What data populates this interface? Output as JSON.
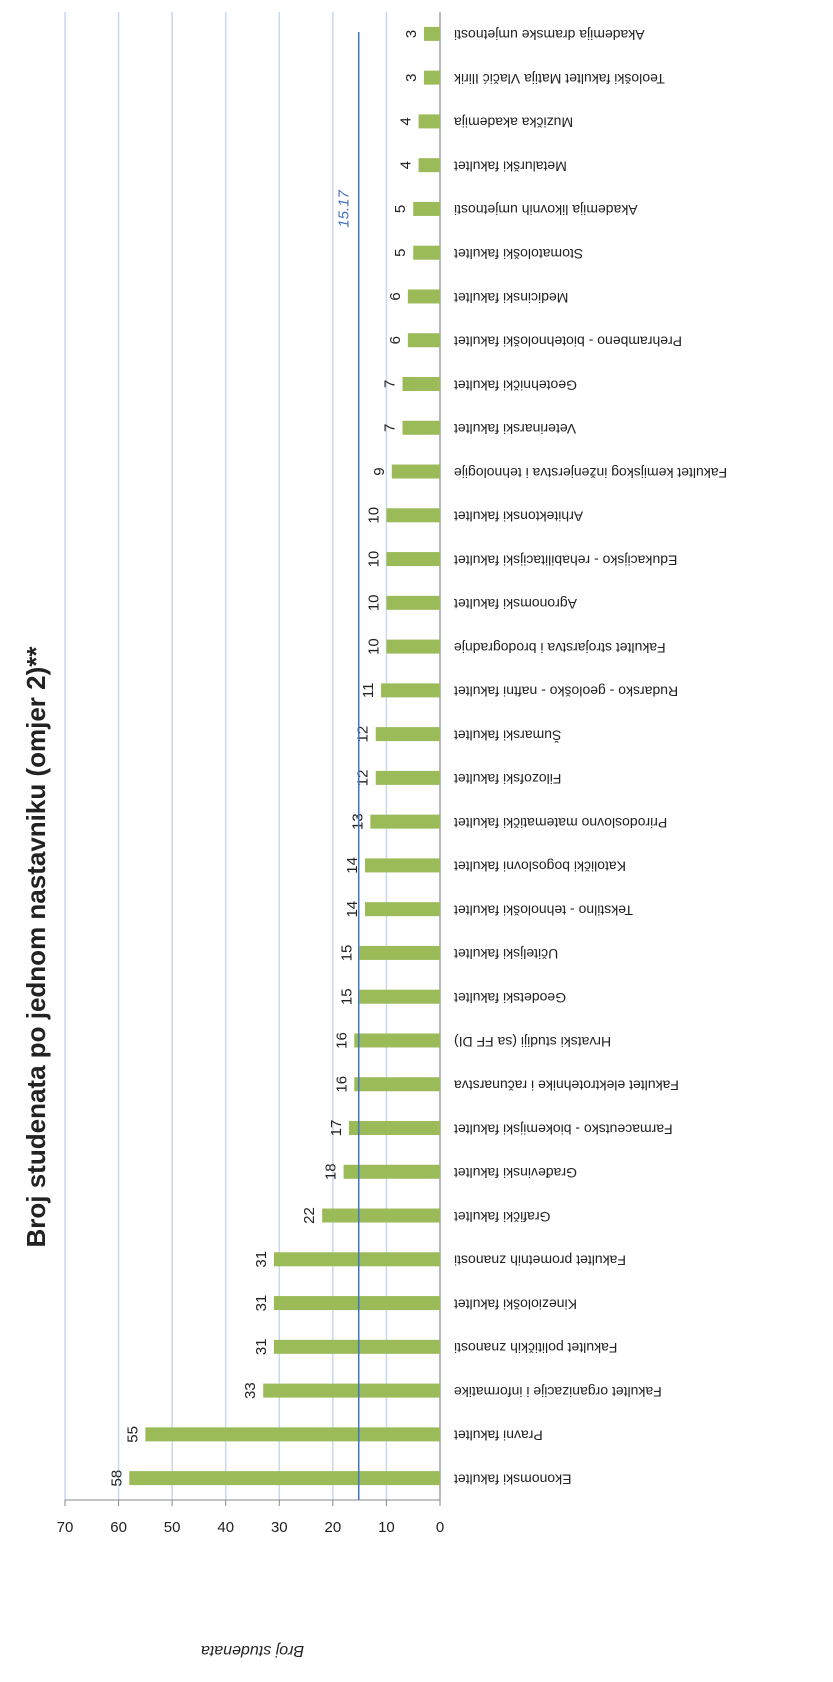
{
  "chart_data": {
    "type": "bar",
    "title": "Broj studenata po jednom nastavniku (omjer 2)**",
    "y_label": "Broj studenata",
    "categories": [
      "Ekonomski fakultet",
      "Pravni fakultet",
      "Fakultet organizacije i informatike",
      "Fakultet političkih znanosti",
      "Kineziološki fakultet",
      "Fakultet prometnih znanosti",
      "Grafički fakultet",
      "Građevinski fakultet",
      "Farmaceutsko - biokemijski fakultet",
      "Fakultet elektrotehnike i računarstva",
      "Hrvatski studiji  (sa FF DI)",
      "Geodetski fakultet",
      "Učiteljski fakultet",
      "Tekstilno - tehnološki fakultet",
      "Katolički bogoslovni fakultet",
      "Prirodoslovno matematički fakultet",
      "Filozofski fakultet",
      "Šumarski fakultet",
      "Rudarsko - geološko - naftni fakultet",
      "Fakultet strojarstva i brodogradnje",
      "Agronomski fakultet",
      "Edukacijsko - rehabilitacijski fakultet",
      "Arhitektonski fakultet",
      "Fakultet kemijskog inženjerstva i tehnologije",
      "Veterinarski fakultet",
      "Geotehnički fakultet",
      "Prehrambeno - biotehnološki fakultet",
      "Medicinski fakultet",
      "Stomatološki fakultet",
      "Akademija likovnih umjetnosti",
      "Metalurški fakultet",
      "Muzička akademija",
      "Teološki fakultet Matija Vlačić Ilirik",
      "Akademija dramske umjetnosti"
    ],
    "values": [
      58,
      55,
      33,
      31,
      31,
      31,
      22,
      18,
      17,
      16,
      16,
      15,
      15,
      14,
      14,
      13,
      12,
      12,
      11,
      10,
      10,
      10,
      10,
      9,
      7,
      7,
      6,
      6,
      5,
      5,
      4,
      4,
      3,
      3
    ],
    "color": "#9bbb59",
    "reference_line": 15.17,
    "reference_color": "#4472c4",
    "ylim": [
      0,
      70
    ],
    "yticks": [
      0,
      10,
      20,
      30,
      40,
      50,
      60,
      70
    ],
    "grid": true
  }
}
